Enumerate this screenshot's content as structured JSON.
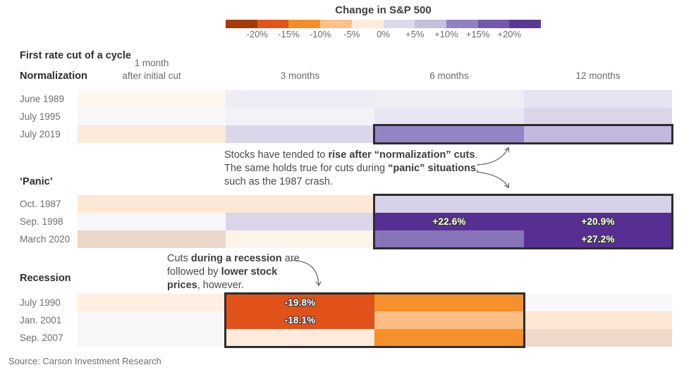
{
  "legend": {
    "title": "Change in S&P 500",
    "tick_labels": [
      "-20%",
      "-15%",
      "-10%",
      "-5%",
      "0%",
      "+5%",
      "+10%",
      "+15%",
      "+20%"
    ],
    "colors": [
      "#a33c06",
      "#e1541a",
      "#f28e28",
      "#fcc089",
      "#fdecd9",
      "#dcd9ec",
      "#c5bedd",
      "#9181c1",
      "#7258ab",
      "#5b3794"
    ]
  },
  "header": {
    "table_title": "First rate cut of a cycle",
    "columns": [
      {
        "lines": [
          "1 month",
          "after initial cut"
        ]
      },
      {
        "lines": [
          "3 months"
        ]
      },
      {
        "lines": [
          "6 months"
        ]
      },
      {
        "lines": [
          "12 months"
        ]
      }
    ]
  },
  "sections": [
    {
      "label": "Normalization",
      "rows": [
        {
          "label": "June 1989",
          "cells": [
            "#fdf8f0",
            "#efecf5",
            "#f0edf5",
            "#e7e2f1"
          ]
        },
        {
          "label": "July 1995",
          "cells": [
            "#f7f7fa",
            "#f4f2f9",
            "#e9e5f3",
            "#dcd5ea"
          ]
        },
        {
          "label": "July 2019",
          "cells": [
            "#fde9d9",
            "#dbd7eb",
            "#9484c5",
            "#c2b8de"
          ]
        }
      ]
    },
    {
      "label": "‘Panic’",
      "rows": [
        {
          "label": "Oct. 1987",
          "cells": [
            "#fde8d5",
            "#fde8d5",
            "#d7d2e7",
            "#d7d2e7"
          ]
        },
        {
          "label": "Sep. 1998",
          "cells": [
            "#f8f7fa",
            "#dad5ea",
            "#572f92",
            "#572f92"
          ],
          "value_labels": {
            "2": "+22.6%",
            "3": "+20.9%"
          }
        },
        {
          "label": "March 2020",
          "cells": [
            "#ebd8cb",
            "#fdf3e8",
            "#8874b8",
            "#572f92"
          ],
          "value_labels": {
            "3": "+27.2%"
          }
        }
      ]
    },
    {
      "label": "Recession",
      "rows": [
        {
          "label": "July 1990",
          "cells": [
            "#fdf0e1",
            "#e1511a",
            "#f5902a",
            "#f8f7fa"
          ],
          "value_labels": {
            "1": "-19.8%"
          }
        },
        {
          "label": "Jan. 2001",
          "cells": [
            "#f7f7fa",
            "#e1511a",
            "#fcbd85",
            "#fde8d3"
          ],
          "value_labels": {
            "1": "-18.1%"
          }
        },
        {
          "label": "Sep. 2007",
          "cells": [
            "#f7f7fa",
            "#fdecdd",
            "#f5902a",
            "#eed8c9"
          ]
        }
      ]
    }
  ],
  "highlight_boxes": [
    {
      "section": 0,
      "rows": [
        2,
        2
      ],
      "cols": [
        2,
        3
      ]
    },
    {
      "section": 1,
      "rows": [
        0,
        2
      ],
      "cols": [
        2,
        3
      ]
    },
    {
      "section": 2,
      "rows": [
        0,
        2
      ],
      "cols": [
        1,
        2
      ]
    }
  ],
  "annotations": [
    {
      "lines": [
        [
          {
            "t": "Stocks have tended to ",
            "b": false
          },
          {
            "t": "rise after “normalization” cuts",
            "b": true
          },
          {
            "t": ".",
            "b": false
          }
        ],
        [
          {
            "t": "The same holds true for cuts during ",
            "b": false
          },
          {
            "t": "“panic” situations",
            "b": true
          },
          {
            "t": ",",
            "b": false
          }
        ],
        [
          {
            "t": "such as the 1987 crash.",
            "b": false
          }
        ]
      ]
    },
    {
      "lines": [
        [
          {
            "t": "Cuts ",
            "b": false
          },
          {
            "t": "during a recession",
            "b": true
          },
          {
            "t": " are",
            "b": false
          }
        ],
        [
          {
            "t": "followed by ",
            "b": false
          },
          {
            "t": "lower stock",
            "b": true
          }
        ],
        [
          {
            "t": "prices",
            "b": true
          },
          {
            "t": ", however.",
            "b": false
          }
        ]
      ]
    }
  ],
  "source": "Source: Carson Investment Research",
  "chart_data": {
    "type": "heatmap",
    "title": "Change in S&P 500",
    "subtitle": "First rate cut of a cycle",
    "columns": [
      "1 month after initial cut",
      "3 months",
      "6 months",
      "12 months"
    ],
    "legend_position": "top",
    "color_scale": {
      "ticks_pct": [
        -20,
        -15,
        -10,
        -5,
        0,
        5,
        10,
        15,
        20
      ],
      "colors": [
        "#a33c06",
        "#e1541a",
        "#f28e28",
        "#fcc089",
        "#fdecd9",
        "#dcd9ec",
        "#c5bedd",
        "#9181c1",
        "#7258ab",
        "#5b3794"
      ]
    },
    "groups": [
      {
        "name": "Normalization",
        "rows": [
          {
            "label": "June 1989",
            "values_pct_est": [
              -1,
              2,
              2,
              4
            ]
          },
          {
            "label": "July 1995",
            "values_pct_est": [
              0,
              1,
              3,
              5
            ]
          },
          {
            "label": "July 2019",
            "values_pct_est": [
              -2,
              4,
              12,
              8
            ]
          }
        ]
      },
      {
        "name": "‘Panic’",
        "rows": [
          {
            "label": "Oct. 1987",
            "values_pct_est": [
              -3,
              -3,
              4,
              4
            ]
          },
          {
            "label": "Sep. 1998",
            "values_pct_est": [
              0,
              4,
              22.6,
              20.9
            ]
          },
          {
            "label": "March 2020",
            "values_pct_est": [
              -6,
              -1,
              13,
              27.2
            ]
          }
        ]
      },
      {
        "name": "Recession",
        "rows": [
          {
            "label": "July 1990",
            "values_pct_est": [
              -1,
              -19.8,
              -12,
              0
            ]
          },
          {
            "label": "Jan. 2001",
            "values_pct_est": [
              0,
              -18.1,
              -8,
              -3
            ]
          },
          {
            "label": "Sep. 2007",
            "values_pct_est": [
              0,
              -2,
              -12,
              -6
            ]
          }
        ]
      }
    ],
    "labeled_values": [
      {
        "row": "Sep. 1998",
        "column": "6 months",
        "label": "+22.6%"
      },
      {
        "row": "Sep. 1998",
        "column": "12 months",
        "label": "+20.9%"
      },
      {
        "row": "March 2020",
        "column": "12 months",
        "label": "+27.2%"
      },
      {
        "row": "July 1990",
        "column": "3 months",
        "label": "-19.8%"
      },
      {
        "row": "Jan. 2001",
        "column": "3 months",
        "label": "-18.1%"
      }
    ]
  }
}
